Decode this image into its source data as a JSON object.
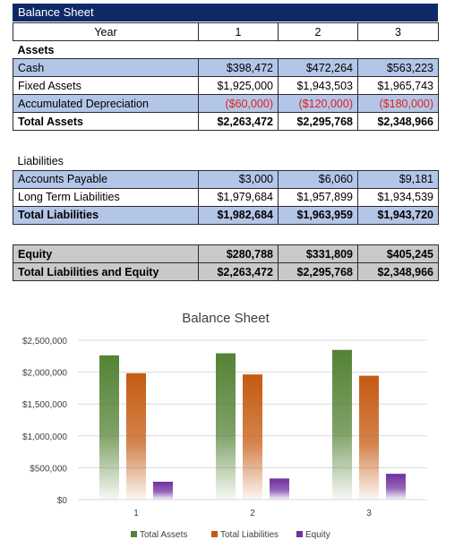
{
  "sheet": {
    "title": "Balance Sheet",
    "header": [
      "Year",
      "1",
      "2",
      "3"
    ],
    "assets_heading": "Assets",
    "assets_rows": [
      {
        "label": "Cash",
        "values": [
          "$398,472",
          "$472,264",
          "$563,223"
        ],
        "style": "blue"
      },
      {
        "label": "Fixed Assets",
        "values": [
          "$1,925,000",
          "$1,943,503",
          "$1,965,743"
        ],
        "style": "white"
      },
      {
        "label": "Accumulated Depreciation",
        "values": [
          "($60,000)",
          "($120,000)",
          "($180,000)"
        ],
        "style": "blue-neg"
      },
      {
        "label": "Total Assets",
        "values": [
          "$2,263,472",
          "$2,295,768",
          "$2,348,966"
        ],
        "style": "bold"
      }
    ],
    "liabilities_heading": "Liabilities",
    "liabilities_rows": [
      {
        "label": "Accounts Payable",
        "values": [
          "$3,000",
          "$6,060",
          "$9,181"
        ],
        "style": "blue"
      },
      {
        "label": "Long Term Liabilities",
        "values": [
          "$1,979,684",
          "$1,957,899",
          "$1,934,539"
        ],
        "style": "white"
      },
      {
        "label": "Total Liabilities",
        "values": [
          "$1,982,684",
          "$1,963,959",
          "$1,943,720"
        ],
        "style": "blue-bold"
      }
    ],
    "equity_rows": [
      {
        "label": "Equity",
        "values": [
          "$280,788",
          "$331,809",
          "$405,245"
        ],
        "style": "gray-bold"
      },
      {
        "label": "Total Liabilities and Equity",
        "values": [
          "$2,263,472",
          "$2,295,768",
          "$2,348,966"
        ],
        "style": "gray-bold"
      }
    ]
  },
  "chart_data": {
    "type": "bar",
    "title": "Balance Sheet",
    "categories": [
      "1",
      "2",
      "3"
    ],
    "series": [
      {
        "name": "Total Assets",
        "values": [
          2263472,
          2295768,
          2348966
        ],
        "color": "#548235"
      },
      {
        "name": "Total Liabilities",
        "values": [
          1982684,
          1963959,
          1943720
        ],
        "color": "#c55a11"
      },
      {
        "name": "Equity",
        "values": [
          280788,
          331809,
          405245
        ],
        "color": "#7030a0"
      }
    ],
    "yticks": [
      "$0",
      "$500,000",
      "$1,000,000",
      "$1,500,000",
      "$2,000,000",
      "$2,500,000"
    ],
    "ylim": [
      0,
      2500000
    ],
    "legend": "bottom",
    "grid": true
  }
}
